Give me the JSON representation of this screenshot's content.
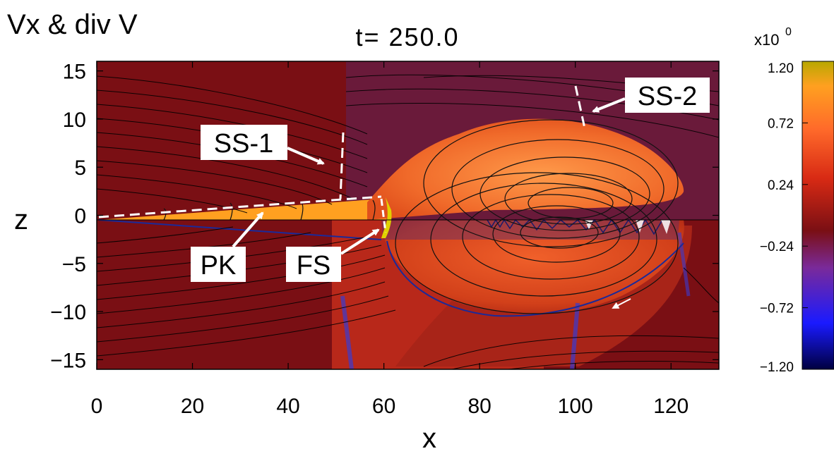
{
  "chart_data": {
    "type": "heatmap",
    "panel_label": "Vx & div V",
    "title": "t= 250.0",
    "xlabel": "x",
    "ylabel": "z",
    "xlim": [
      0,
      130
    ],
    "ylim": [
      -16,
      16
    ],
    "xticks": [
      0,
      20,
      40,
      60,
      80,
      100,
      120
    ],
    "yticks": [
      15,
      10,
      5,
      0,
      -5,
      -10,
      -15
    ],
    "colorbar": {
      "exponent_label": "x10",
      "exponent_power": "0",
      "ticks": [
        "1.20",
        "0.72",
        "0.24",
        "−0.24",
        "−0.72",
        "−1.20"
      ],
      "tick_values": [
        1.2,
        0.72,
        0.24,
        -0.24,
        -0.72,
        -1.2
      ],
      "range": [
        -1.2,
        1.2
      ],
      "colors": [
        "#000040",
        "#1a1aff",
        "#7a2a9a",
        "#7a0f14",
        "#d82a14",
        "#ff6a2a",
        "#ffa020",
        "#b8a800"
      ]
    },
    "annotations": [
      {
        "label": "SS-1",
        "x": 50,
        "z": 3
      },
      {
        "label": "SS-2",
        "x": 104,
        "z": 11.5
      },
      {
        "label": "PK",
        "x": 31,
        "z": -2
      },
      {
        "label": "FS",
        "x": 58,
        "z": -2
      }
    ]
  }
}
